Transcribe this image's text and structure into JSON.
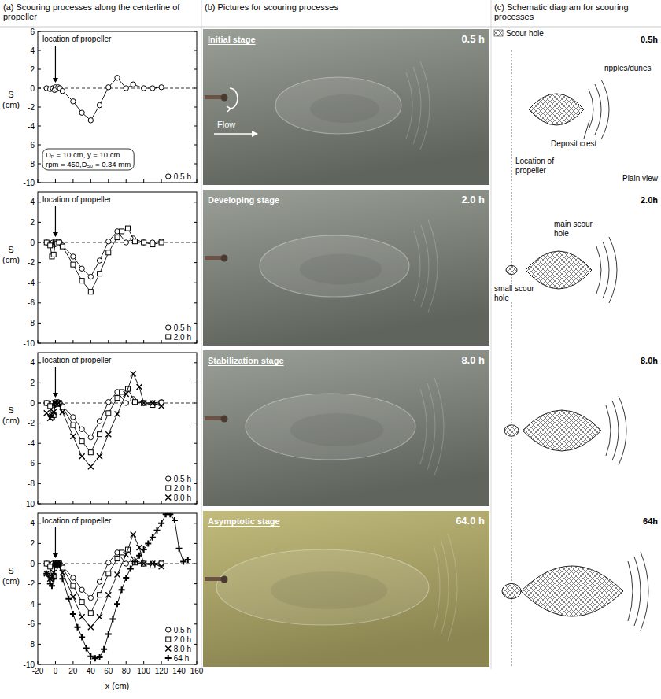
{
  "headers": [
    "(a) Scouring processes along the centerline of propeller",
    "(b) Pictures for scouring processes",
    "(c) Schematic diagram for scouring processes"
  ],
  "chart_data": [
    {
      "type": "line",
      "ylabel": "S (cm)",
      "annotation": "location of propeller",
      "propeller_x": 0,
      "baseline": 0,
      "note": [
        "Dₚ = 10 cm, y = 10 cm",
        "rpm = 450,D₅₀ = 0.34 mm"
      ],
      "xlim": [
        -20,
        160
      ],
      "xticks": [
        -20,
        0,
        20,
        40,
        60,
        80,
        100,
        120,
        140,
        160
      ],
      "ylim": [
        -10,
        6
      ],
      "yticks": [
        -10,
        -8,
        -6,
        -4,
        -2,
        0,
        2,
        4,
        6
      ],
      "grid": false,
      "legend": "lower right",
      "tick_labels": "y",
      "series": [
        {
          "name": "0.5 h",
          "color": "#000000",
          "marker": "circle",
          "line_style": "solid",
          "x": [
            -10,
            -6,
            -3,
            -1,
            0,
            1,
            3,
            5,
            8,
            20,
            30,
            40,
            50,
            60,
            70,
            80,
            88,
            100,
            110,
            120
          ],
          "values": [
            0,
            -0.1,
            0,
            -0.2,
            0.1,
            -0.1,
            0.1,
            0,
            -0.3,
            -1.4,
            -2.6,
            -3.4,
            -1.8,
            0.1,
            1.1,
            0,
            0.4,
            0,
            0,
            0.1
          ]
        }
      ]
    },
    {
      "type": "line",
      "ylabel": "S (cm)",
      "annotation": "location of propeller",
      "propeller_x": 0,
      "baseline": 0,
      "xlim": [
        -20,
        160
      ],
      "xticks": [
        -20,
        0,
        20,
        40,
        60,
        80,
        100,
        120,
        140,
        160
      ],
      "ylim": [
        -10,
        5
      ],
      "yticks": [
        -10,
        -8,
        -6,
        -4,
        -2,
        0,
        2,
        4
      ],
      "grid": false,
      "legend": "lower right",
      "tick_labels": "y",
      "series": [
        {
          "name": "0.5 h",
          "color": "#000000",
          "marker": "circle",
          "line_style": "solid",
          "x": [
            -10,
            -6,
            -3,
            -1,
            0,
            1,
            3,
            5,
            8,
            20,
            30,
            40,
            50,
            60,
            70,
            80,
            88,
            100,
            110,
            120
          ],
          "values": [
            0,
            -0.1,
            0,
            -0.2,
            0.1,
            -0.1,
            0.1,
            0,
            -0.3,
            -1.4,
            -2.6,
            -3.4,
            -1.8,
            0.1,
            1.1,
            0,
            0.4,
            0,
            0,
            0.1
          ]
        },
        {
          "name": "2.0 h",
          "color": "#000000",
          "marker": "square",
          "line_style": "solid",
          "x": [
            -10,
            -6,
            -4,
            -2,
            0,
            2,
            4,
            8,
            20,
            30,
            40,
            50,
            60,
            70,
            75,
            82,
            90,
            100,
            110,
            120
          ],
          "values": [
            0,
            -0.3,
            -1.4,
            -1.2,
            0,
            -0.1,
            0,
            -0.4,
            -2.2,
            -3.8,
            -4.9,
            -3.1,
            -1.0,
            0.5,
            1.1,
            1.4,
            0.1,
            0,
            -0.2,
            0
          ]
        }
      ]
    },
    {
      "type": "line",
      "ylabel": "S (cm)",
      "annotation": "location of propeller",
      "propeller_x": 0,
      "baseline": 0,
      "xlim": [
        -20,
        160
      ],
      "xticks": [
        -20,
        0,
        20,
        40,
        60,
        80,
        100,
        120,
        140,
        160
      ],
      "ylim": [
        -10,
        5
      ],
      "yticks": [
        -10,
        -8,
        -6,
        -4,
        -2,
        0,
        2,
        4
      ],
      "grid": false,
      "legend": "lower right",
      "tick_labels": "y",
      "series": [
        {
          "name": "0.5 h",
          "color": "#000000",
          "marker": "circle",
          "line_style": "solid",
          "x": [
            -10,
            -6,
            -3,
            -1,
            0,
            1,
            3,
            5,
            8,
            20,
            30,
            40,
            50,
            60,
            70,
            80,
            88,
            100,
            110,
            120
          ],
          "values": [
            0,
            -0.1,
            0,
            -0.2,
            0.1,
            -0.1,
            0.1,
            0,
            -0.3,
            -1.4,
            -2.6,
            -3.4,
            -1.8,
            0.1,
            1.1,
            0,
            0.4,
            0,
            0,
            0.1
          ]
        },
        {
          "name": "2.0 h",
          "color": "#000000",
          "marker": "square",
          "line_style": "solid",
          "x": [
            -10,
            -6,
            -4,
            -2,
            0,
            2,
            4,
            8,
            20,
            30,
            40,
            50,
            60,
            70,
            75,
            82,
            90,
            100,
            110,
            120
          ],
          "values": [
            0,
            -0.3,
            -1.4,
            -1.2,
            0,
            -0.1,
            0,
            -0.4,
            -2.2,
            -3.8,
            -4.9,
            -3.1,
            -1.0,
            0.5,
            1.1,
            1.4,
            0.1,
            0,
            -0.2,
            0
          ]
        },
        {
          "name": "8.0 h",
          "color": "#000000",
          "marker": "x",
          "line_style": "solid",
          "x": [
            -10,
            -6,
            -4,
            -2,
            0,
            2,
            4,
            8,
            20,
            30,
            40,
            50,
            60,
            70,
            80,
            88,
            95,
            100,
            110,
            120
          ],
          "values": [
            -1.0,
            -1.5,
            -1.3,
            -0.9,
            0,
            -0.1,
            0,
            -0.9,
            -3.3,
            -5.3,
            -6.3,
            -5.3,
            -3.1,
            -1.1,
            0.9,
            2.9,
            1.6,
            0,
            0,
            -0.3
          ]
        }
      ]
    },
    {
      "type": "line",
      "ylabel": "S (cm)",
      "xlabel": "x (cm)",
      "annotation": "location of propeller",
      "propeller_x": 0,
      "baseline": 0,
      "xlim": [
        -20,
        160
      ],
      "xticks": [
        -20,
        0,
        20,
        40,
        60,
        80,
        100,
        120,
        140,
        160
      ],
      "ylim": [
        -10,
        5
      ],
      "yticks": [
        -10,
        -8,
        -6,
        -4,
        -2,
        0,
        2,
        4
      ],
      "grid": false,
      "legend": "lower right",
      "tick_labels": true,
      "series": [
        {
          "name": "0.5 h",
          "color": "#000000",
          "marker": "circle",
          "line_style": "solid",
          "x": [
            -10,
            -6,
            -3,
            -1,
            0,
            1,
            3,
            5,
            8,
            20,
            30,
            40,
            50,
            60,
            70,
            80,
            88,
            100,
            110,
            120
          ],
          "values": [
            0,
            -0.1,
            0,
            -0.2,
            0.1,
            -0.1,
            0.1,
            0,
            -0.3,
            -1.4,
            -2.6,
            -3.4,
            -1.8,
            0.1,
            1.1,
            0,
            0.4,
            0,
            0,
            0.1
          ]
        },
        {
          "name": "2.0 h",
          "color": "#000000",
          "marker": "square",
          "line_style": "solid",
          "x": [
            -10,
            -6,
            -4,
            -2,
            0,
            2,
            4,
            8,
            20,
            30,
            40,
            50,
            60,
            70,
            75,
            82,
            90,
            100,
            110,
            120
          ],
          "values": [
            0,
            -0.3,
            -1.4,
            -1.2,
            0,
            -0.1,
            0,
            -0.4,
            -2.2,
            -3.8,
            -4.9,
            -3.1,
            -1.0,
            0.5,
            1.1,
            1.4,
            0.1,
            0,
            -0.2,
            0
          ]
        },
        {
          "name": "8.0 h",
          "color": "#000000",
          "marker": "x",
          "line_style": "solid",
          "x": [
            -10,
            -6,
            -4,
            -2,
            0,
            2,
            4,
            8,
            20,
            30,
            40,
            50,
            60,
            70,
            80,
            88,
            95,
            100,
            110,
            120
          ],
          "values": [
            -1.0,
            -1.5,
            -1.3,
            -0.9,
            0,
            -0.1,
            0,
            -0.9,
            -3.3,
            -5.3,
            -6.3,
            -5.3,
            -3.1,
            -1.1,
            0.9,
            2.9,
            1.6,
            0,
            0,
            -0.3
          ]
        },
        {
          "name": "64 h",
          "color": "#000000",
          "marker": "plus",
          "line_style": "solid",
          "x": [
            -10,
            -6,
            -4,
            -2,
            0,
            2,
            4,
            8,
            15,
            20,
            25,
            30,
            35,
            40,
            45,
            50,
            55,
            60,
            65,
            70,
            75,
            80,
            85,
            90,
            95,
            100,
            105,
            110,
            115,
            120,
            125,
            130,
            135,
            140,
            145,
            150
          ],
          "values": [
            -1.0,
            -2.0,
            -2.2,
            -1.5,
            0,
            -0.2,
            0,
            -1.5,
            -3.5,
            -5.0,
            -6.3,
            -7.3,
            -8.4,
            -9.2,
            -9.4,
            -9.3,
            -8.5,
            -7.0,
            -5.5,
            -4.0,
            -2.6,
            -1.4,
            -0.5,
            0.2,
            0.8,
            1.4,
            2.0,
            2.6,
            3.3,
            4.0,
            4.9,
            4.9,
            4.3,
            1.5,
            0.2,
            0.4
          ]
        }
      ]
    }
  ],
  "photos": [
    {
      "stage": "Initial stage",
      "time": "0.5 h",
      "flow": "Flow"
    },
    {
      "stage": "Developing stage",
      "time": "2.0 h"
    },
    {
      "stage": "Stabilization stage",
      "time": "8.0 h"
    },
    {
      "stage": "Asymptotic stage",
      "time": "64.0 h"
    }
  ],
  "schematic": {
    "legend": "Scour hole",
    "propeller_label": "Location of propeller",
    "view_label": "Plain view",
    "panels": [
      {
        "time": "0.5h",
        "ripples": "ripples/dunes",
        "crest": "Deposit crest"
      },
      {
        "time": "2.0h",
        "main": "main scour hole",
        "small": "small scour hole"
      },
      {
        "time": "8.0h"
      },
      {
        "time": "64h"
      }
    ]
  }
}
